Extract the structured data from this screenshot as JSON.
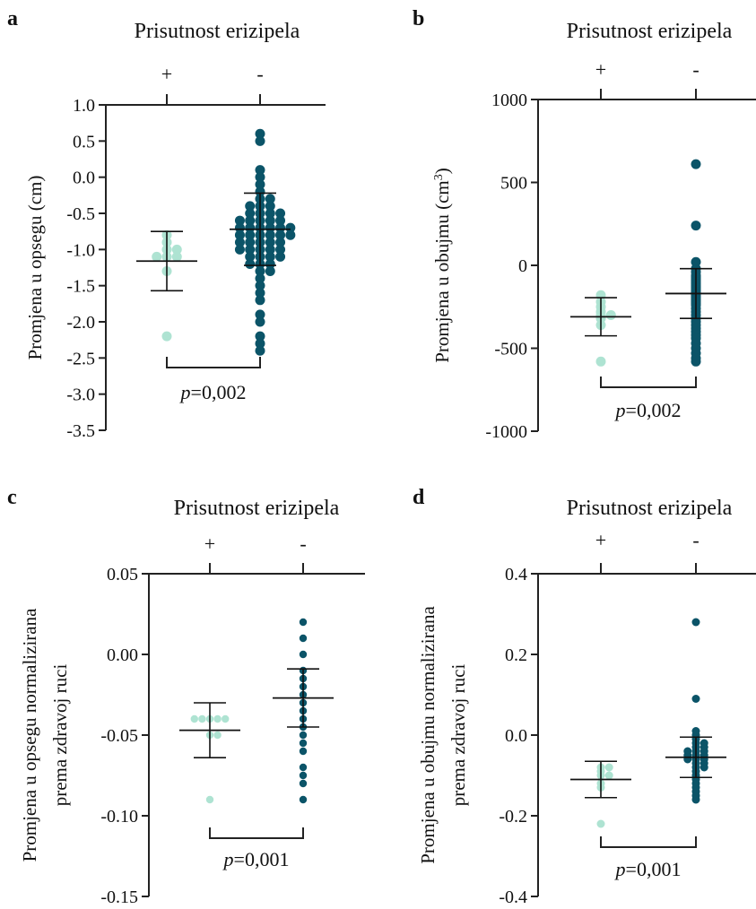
{
  "colors": {
    "positive": "#aee3d2",
    "negative": "#0b5468",
    "axis": "#222222"
  },
  "chart_data": [
    {
      "panel": "a",
      "type": "scatter",
      "title": "Prisutnost erizipela",
      "categories": [
        "+",
        "-"
      ],
      "ylabel": "Promjena u opsegu (cm)",
      "ylim": [
        -3.5,
        1.0
      ],
      "yticks": [
        "1.0",
        "0.5",
        "0.0",
        "-0.5",
        "-1.0",
        "-1.5",
        "-2.0",
        "-2.5",
        "-3.0",
        "-3.5"
      ],
      "p_text": "=0,002",
      "stats": {
        "+": {
          "mean": -1.16,
          "sd": 0.41
        },
        "-": {
          "mean": -0.72,
          "sd": 0.5
        }
      },
      "series": [
        {
          "category": "+",
          "values": [
            -0.8,
            -0.9,
            -1.0,
            -1.0,
            -1.1,
            -1.1,
            -1.1,
            -1.3,
            -2.2
          ]
        },
        {
          "category": "-",
          "values": [
            0.6,
            0.5,
            0.1,
            0.0,
            -0.1,
            -0.2,
            -0.3,
            -0.3,
            -0.4,
            -0.4,
            -0.4,
            -0.5,
            -0.5,
            -0.5,
            -0.5,
            -0.6,
            -0.6,
            -0.6,
            -0.6,
            -0.6,
            -0.7,
            -0.7,
            -0.7,
            -0.7,
            -0.7,
            -0.7,
            -0.8,
            -0.8,
            -0.8,
            -0.8,
            -0.8,
            -0.8,
            -0.9,
            -0.9,
            -0.9,
            -0.9,
            -0.9,
            -1.0,
            -1.0,
            -1.0,
            -1.0,
            -1.0,
            -1.1,
            -1.1,
            -1.1,
            -1.1,
            -1.2,
            -1.2,
            -1.2,
            -1.3,
            -1.3,
            -1.4,
            -1.5,
            -1.6,
            -1.7,
            -1.9,
            -2.0,
            -2.2,
            -2.3,
            -2.4
          ]
        }
      ]
    },
    {
      "panel": "b",
      "type": "scatter",
      "title": "Prisutnost erizipela",
      "categories": [
        "+",
        "-"
      ],
      "ylabel": "Promjena u obujmu (cm",
      "ylabel_sup": "3",
      "ylabel_end": ")",
      "ylim": [
        -1000,
        1000
      ],
      "yticks": [
        "1000",
        "500",
        "0",
        "-500",
        "-1000"
      ],
      "p_text": "=0,002",
      "stats": {
        "+": {
          "mean": -310,
          "sd": 115
        },
        "-": {
          "mean": -170,
          "sd": 150
        }
      },
      "series": [
        {
          "category": "+",
          "values": [
            -180,
            -220,
            -250,
            -280,
            -300,
            -300,
            -320,
            -360,
            -580
          ]
        },
        {
          "category": "-",
          "values": [
            610,
            240,
            20,
            -20,
            -40,
            -60,
            -70,
            -80,
            -90,
            -100,
            -110,
            -120,
            -130,
            -140,
            -150,
            -160,
            -170,
            -180,
            -190,
            -200,
            -210,
            -220,
            -230,
            -240,
            -260,
            -280,
            -300,
            -320,
            -340,
            -360,
            -380,
            -400,
            -420,
            -440,
            -470,
            -500,
            -530,
            -560,
            -580
          ]
        }
      ]
    },
    {
      "panel": "c",
      "type": "scatter",
      "title": "Prisutnost erizipela",
      "categories": [
        "+",
        "-"
      ],
      "ylabel": "Promjena u opsegu normalizirana",
      "ylabel2": "prema zdravoj ruci",
      "ylim": [
        -0.15,
        0.05
      ],
      "yticks": [
        "0.05",
        "0.00",
        "-0.05",
        "-0.10",
        "-0.15"
      ],
      "p_text": "=0,001",
      "stats": {
        "+": {
          "mean": -0.047,
          "sd": 0.017
        },
        "-": {
          "mean": -0.027,
          "sd": 0.018
        }
      },
      "series": [
        {
          "category": "+",
          "values": [
            -0.04,
            -0.04,
            -0.04,
            -0.04,
            -0.04,
            -0.05,
            -0.05,
            -0.09
          ]
        },
        {
          "category": "-",
          "values": [
            0.02,
            0.01,
            0.0,
            -0.01,
            -0.015,
            -0.02,
            -0.025,
            -0.03,
            -0.035,
            -0.04,
            -0.045,
            -0.05,
            -0.055,
            -0.06,
            -0.07,
            -0.075,
            -0.08,
            -0.09
          ]
        }
      ]
    },
    {
      "panel": "d",
      "type": "scatter",
      "title": "Prisutnost erizipela",
      "categories": [
        "+",
        "-"
      ],
      "ylabel": "Promjena u obujmu normalizirana",
      "ylabel2": "prema zdravoj ruci",
      "ylim": [
        -0.4,
        0.4
      ],
      "yticks": [
        "0.4",
        "0.2",
        "0.0",
        "-0.2",
        "-0.4"
      ],
      "p_text": "=0,001",
      "stats": {
        "+": {
          "mean": -0.11,
          "sd": 0.045
        },
        "-": {
          "mean": -0.055,
          "sd": 0.05
        }
      },
      "series": [
        {
          "category": "+",
          "values": [
            -0.08,
            -0.08,
            -0.09,
            -0.1,
            -0.1,
            -0.12,
            -0.13,
            -0.22
          ]
        },
        {
          "category": "-",
          "values": [
            0.28,
            0.09,
            0.01,
            0.0,
            -0.01,
            -0.02,
            -0.02,
            -0.03,
            -0.03,
            -0.04,
            -0.04,
            -0.04,
            -0.05,
            -0.05,
            -0.05,
            -0.06,
            -0.06,
            -0.06,
            -0.07,
            -0.07,
            -0.08,
            -0.08,
            -0.09,
            -0.1,
            -0.11,
            -0.12,
            -0.13,
            -0.14,
            -0.15,
            -0.16
          ]
        }
      ]
    }
  ]
}
